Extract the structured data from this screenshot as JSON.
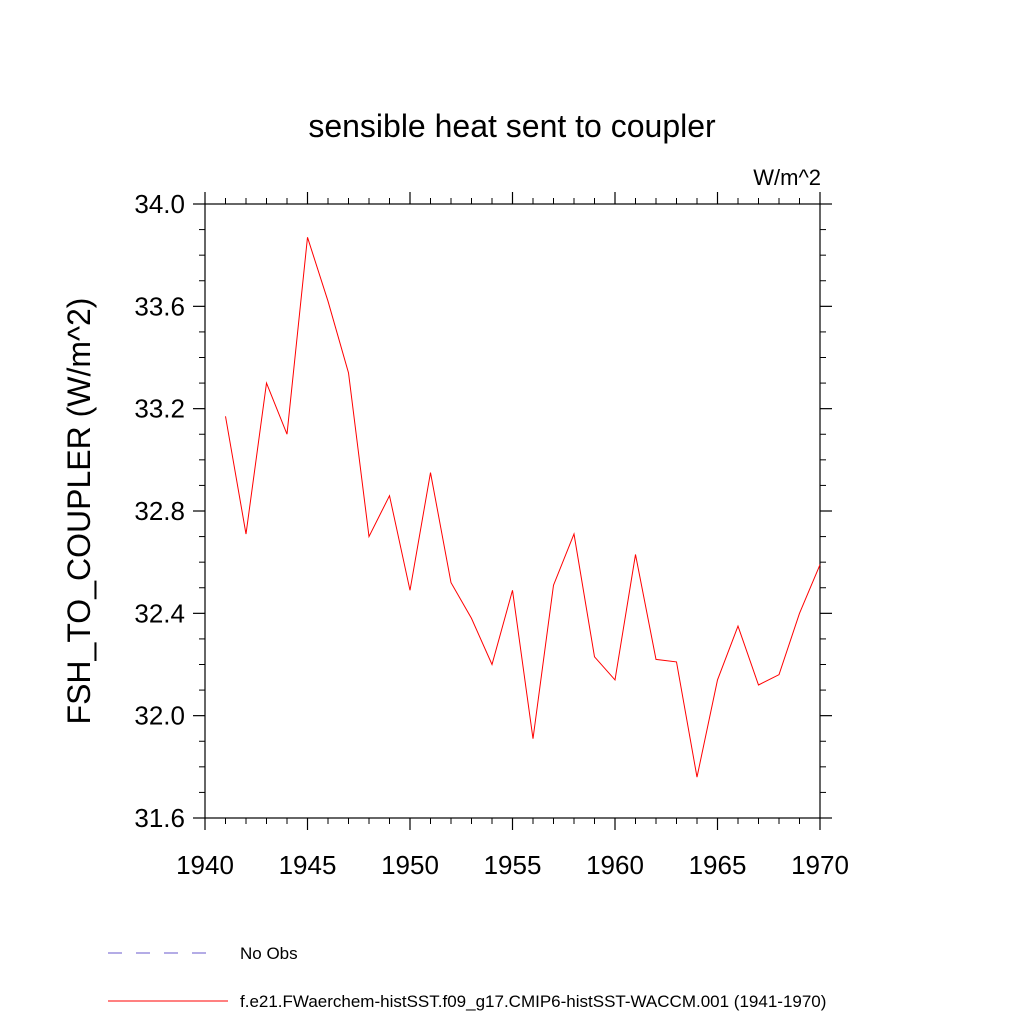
{
  "chart_data": {
    "type": "line",
    "title": "sensible heat sent to coupler",
    "units_label": "W/m^2",
    "ylabel": "FSH_TO_COUPLER  (W/m^2)",
    "xlabel": "",
    "xlim": [
      1940,
      1970
    ],
    "ylim": [
      31.6,
      34.0
    ],
    "x_ticks": [
      1940,
      1945,
      1950,
      1955,
      1960,
      1965,
      1970
    ],
    "y_ticks": [
      31.6,
      32.0,
      32.4,
      32.8,
      33.2,
      33.6,
      34.0
    ],
    "x_tick_labels": [
      "1940",
      "1945",
      "1950",
      "1955",
      "1960",
      "1965",
      "1970"
    ],
    "y_tick_labels": [
      "31.6",
      "32.0",
      "32.4",
      "32.8",
      "33.2",
      "33.6",
      "34.0"
    ],
    "grid": false,
    "legend_placement": "bottom",
    "series": [
      {
        "name": "f.e21.FWaerchem-histSST.f09_g17.CMIP6-histSST-WACCM.001 (1941-1970)",
        "color": "#ff0000",
        "x": [
          1941,
          1942,
          1943,
          1944,
          1945,
          1946,
          1947,
          1948,
          1949,
          1950,
          1951,
          1952,
          1953,
          1954,
          1955,
          1956,
          1957,
          1958,
          1959,
          1960,
          1961,
          1962,
          1963,
          1964,
          1965,
          1966,
          1967,
          1968,
          1969,
          1970
        ],
        "values": [
          33.17,
          32.71,
          33.3,
          33.1,
          33.87,
          33.62,
          33.34,
          32.7,
          32.86,
          32.49,
          32.95,
          32.52,
          32.38,
          32.2,
          32.49,
          31.91,
          32.51,
          32.71,
          32.23,
          32.14,
          32.63,
          32.22,
          32.21,
          31.76,
          32.14,
          32.35,
          32.12,
          32.16,
          32.4,
          32.59
        ]
      }
    ],
    "legend": [
      {
        "label": "No Obs",
        "color": "#6a5acd",
        "style": "dashed"
      },
      {
        "label": "f.e21.FWaerchem-histSST.f09_g17.CMIP6-histSST-WACCM.001 (1941-1970)",
        "color": "#ff0000",
        "style": "solid"
      }
    ]
  }
}
